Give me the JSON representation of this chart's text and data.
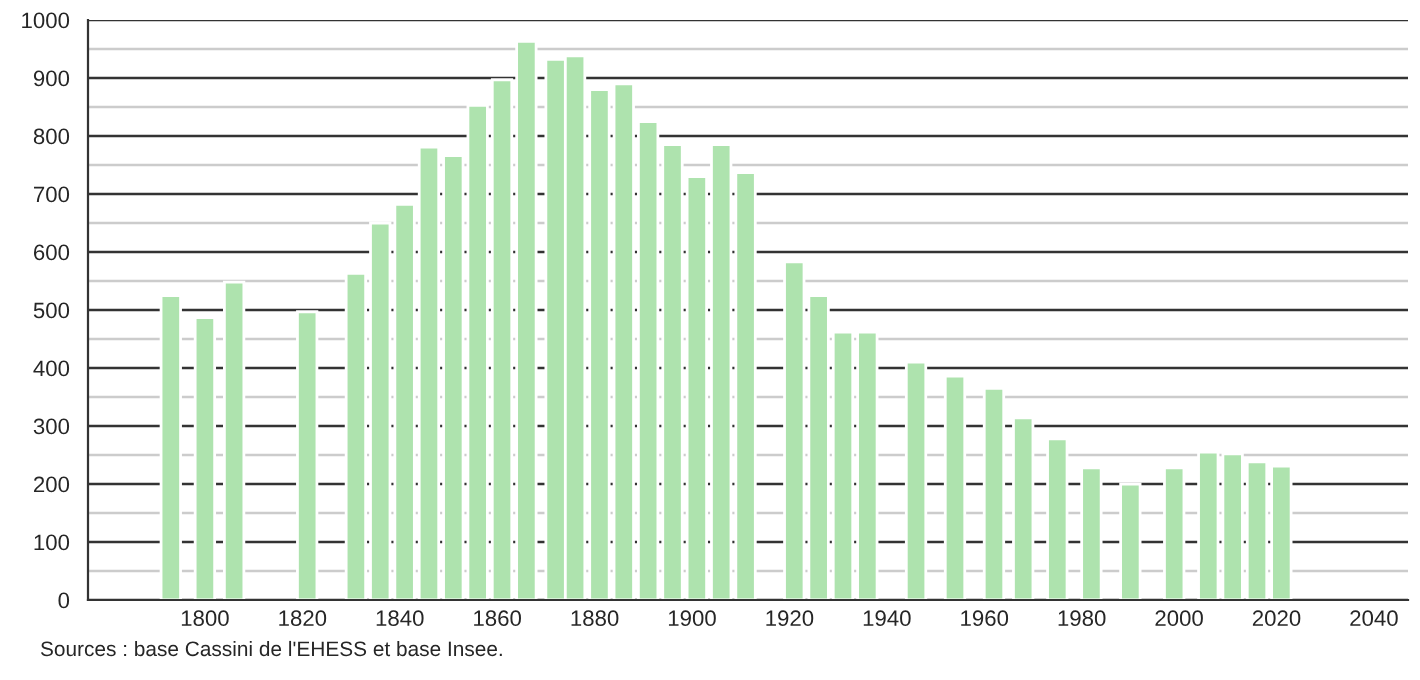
{
  "chart_data": {
    "type": "bar",
    "color": "#aee3ae",
    "x": [
      1793,
      1800,
      1806,
      1821,
      1831,
      1836,
      1841,
      1846,
      1851,
      1856,
      1861,
      1866,
      1872,
      1876,
      1881,
      1886,
      1891,
      1896,
      1901,
      1906,
      1911,
      1921,
      1926,
      1931,
      1936,
      1946,
      1954,
      1962,
      1968,
      1975,
      1982,
      1990,
      1999,
      2006,
      2011,
      2016,
      2021
    ],
    "values": [
      525,
      487,
      548,
      497,
      563,
      650,
      682,
      781,
      766,
      853,
      897,
      963,
      932,
      938,
      880,
      890,
      825,
      785,
      730,
      785,
      737,
      583,
      525,
      462,
      462,
      410,
      386,
      365,
      314,
      278,
      228,
      200,
      228,
      255,
      252,
      238,
      231
    ],
    "xlim": [
      1776,
      2047
    ],
    "xticks": [
      1800,
      1820,
      1840,
      1860,
      1880,
      1900,
      1920,
      1940,
      1960,
      1980,
      2000,
      2020,
      2040
    ],
    "ylim": [
      0,
      1000
    ],
    "yticks": [
      0,
      {
        "value": 50,
        "label": null
      },
      100,
      {
        "value": 150,
        "label": null
      },
      200,
      {
        "value": 250,
        "label": null
      },
      300,
      {
        "value": 350,
        "label": null
      },
      400,
      {
        "value": 450,
        "label": null
      },
      500,
      {
        "value": 550,
        "label": null
      },
      600,
      {
        "value": 650,
        "label": null
      },
      700,
      {
        "value": 750,
        "label": null
      },
      800,
      {
        "value": 850,
        "label": null
      },
      900,
      {
        "value": 950,
        "label": null
      },
      1000
    ],
    "grid": "y",
    "annotations": [
      "Sources : base Cassini de l'EHESS et base Insee."
    ]
  }
}
